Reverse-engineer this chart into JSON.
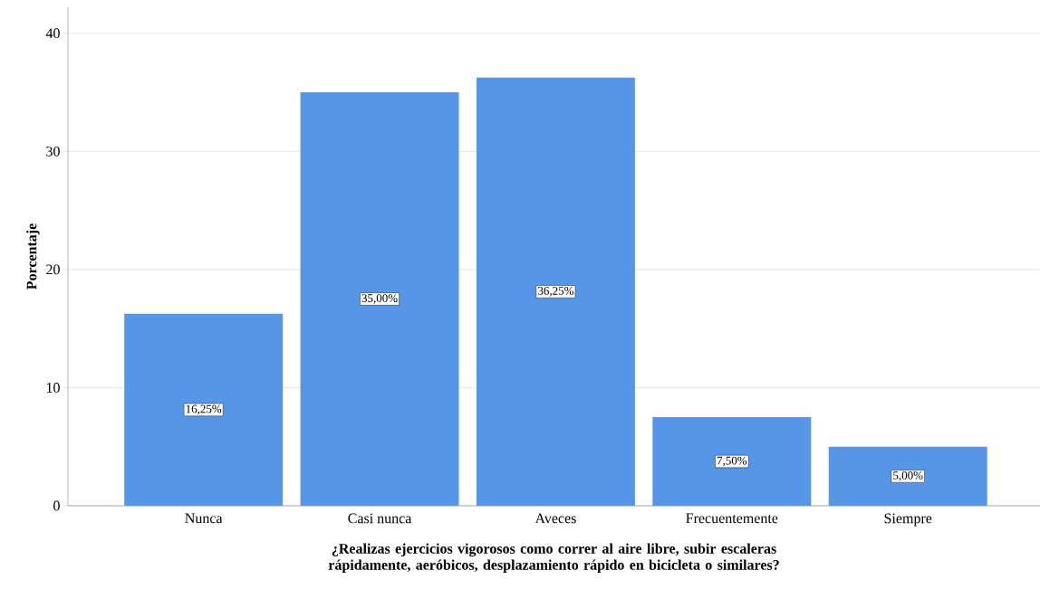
{
  "chart_data": {
    "type": "bar",
    "xlabel": "¿Realizas ejercicios vigorosos como correr al aire libre, subir escaleras rápidamente, aeróbicos, desplazamiento rápido en bicicleta o similares?",
    "ylabel": "Porcentaje",
    "categories": [
      "Nunca",
      "Casi nunca",
      "Aveces",
      "Frecuentemente",
      "Siempre"
    ],
    "values": [
      16.25,
      35.0,
      36.25,
      7.5,
      5.0
    ],
    "value_labels": [
      "16,25%",
      "35,00%",
      "36,25%",
      "7,50%",
      "5,00%"
    ],
    "color": "#5596e6",
    "ylim": [
      0,
      42.2
    ],
    "yticks": [
      0,
      10,
      20,
      30,
      40
    ],
    "grid": "y"
  }
}
